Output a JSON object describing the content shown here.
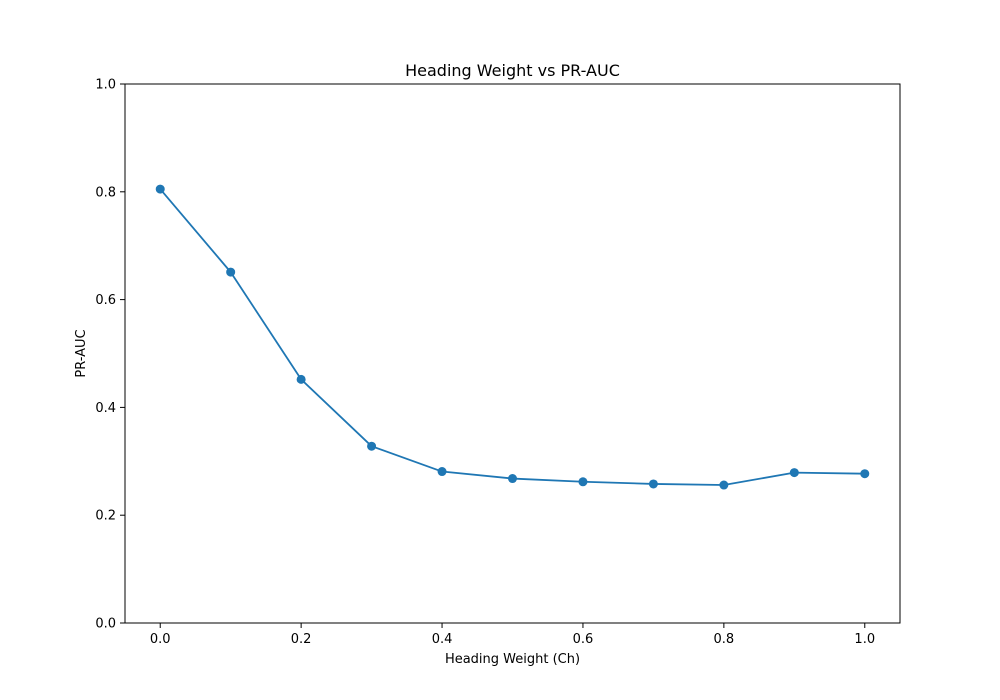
{
  "chart_data": {
    "type": "line",
    "title": "Heading Weight vs PR-AUC",
    "xlabel": "Heading Weight (Ch)",
    "ylabel": "PR-AUC",
    "xlim": [
      -0.05,
      1.05
    ],
    "ylim": [
      0.0,
      1.0
    ],
    "x_ticks": [
      0.0,
      0.2,
      0.4,
      0.6,
      0.8,
      1.0
    ],
    "x_tick_labels": [
      "0.0",
      "0.2",
      "0.4",
      "0.6",
      "0.8",
      "1.0"
    ],
    "y_ticks": [
      0.0,
      0.2,
      0.4,
      0.6,
      0.8,
      1.0
    ],
    "y_tick_labels": [
      "0.0",
      "0.2",
      "0.4",
      "0.6",
      "0.8",
      "1.0"
    ],
    "grid": false,
    "marker": "circle",
    "line_color": "#1f77b4",
    "series": [
      {
        "x": [
          0.0,
          0.1,
          0.2,
          0.3,
          0.4,
          0.5,
          0.6,
          0.7,
          0.8,
          0.9,
          1.0
        ],
        "values": [
          0.805,
          0.651,
          0.452,
          0.328,
          0.281,
          0.268,
          0.262,
          0.258,
          0.256,
          0.279,
          0.277
        ]
      }
    ]
  }
}
